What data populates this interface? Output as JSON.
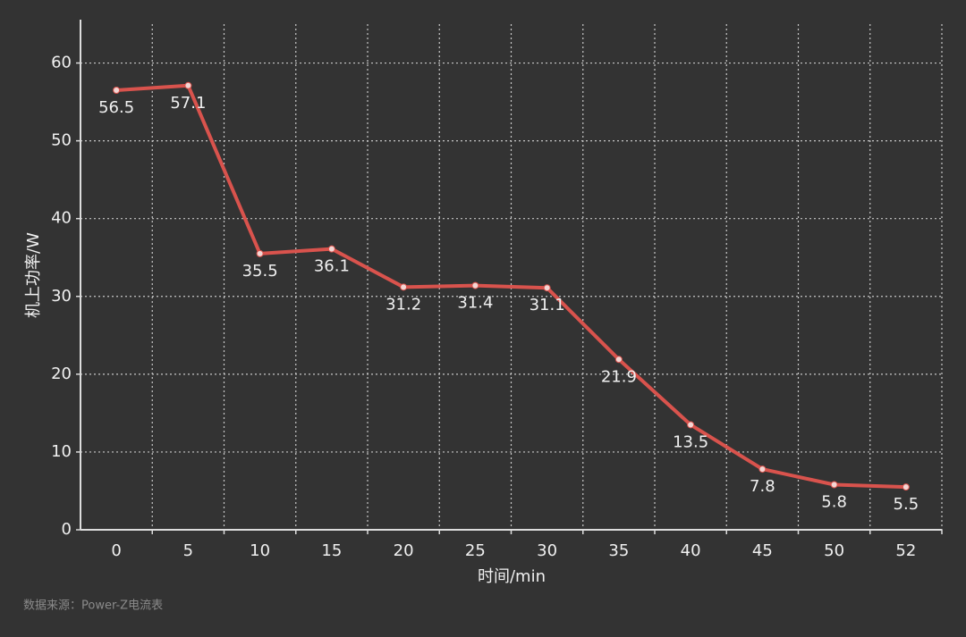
{
  "chart_data": {
    "type": "line",
    "x_label": "时间/min",
    "y_label": "机上功率/W",
    "source": "数据来源：Power-Z电流表",
    "categories": [
      "0",
      "5",
      "10",
      "15",
      "20",
      "25",
      "30",
      "35",
      "40",
      "45",
      "50",
      "52"
    ],
    "series": [
      {
        "name": "机上功率",
        "color": "#d9534d",
        "values": [
          56.5,
          57.1,
          35.5,
          36.1,
          31.2,
          31.4,
          31.1,
          21.9,
          13.5,
          7.8,
          5.8,
          5.5
        ]
      }
    ],
    "ylim": [
      0,
      65
    ],
    "yticks": [
      0,
      10,
      20,
      30,
      40,
      50,
      60
    ],
    "grid": true
  }
}
